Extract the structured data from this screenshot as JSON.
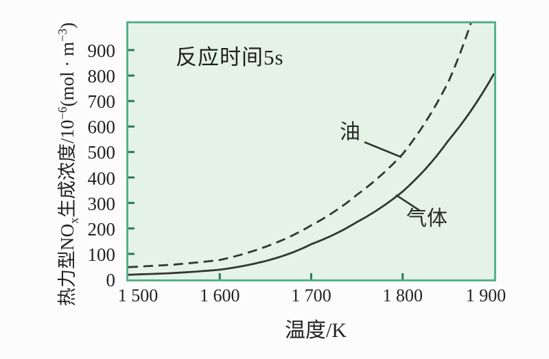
{
  "chart_data": {
    "type": "line",
    "annotation": "反应时间5s",
    "xlabel": "温度/K",
    "ylabel": "热力型NOx生成浓度/10⁻⁶(mol·m⁻³)",
    "ylabel_parts": {
      "base1": "热力型NO",
      "sub1": "x",
      "base2": "生成浓度/10",
      "sup1": "−6",
      "base3": "(mol · m",
      "sup2": "−3",
      "base4": ")"
    },
    "x_ticks": [
      "1 500",
      "1 600",
      "1 700",
      "1 800",
      "1 900"
    ],
    "y_ticks": [
      0,
      100,
      200,
      300,
      400,
      500,
      600,
      700,
      800,
      900
    ],
    "xlim": [
      1500,
      1900
    ],
    "ylim": [
      0,
      1005
    ],
    "grid": false,
    "legend_position": "inline-labels-with-leader-lines",
    "series": [
      {
        "name": "油",
        "style": "dashed",
        "x": [
          1500,
          1550,
          1600,
          1650,
          1700,
          1750,
          1800,
          1850,
          1880
        ],
        "values": [
          48,
          58,
          76,
          128,
          212,
          332,
          492,
          775,
          1065
        ]
      },
      {
        "name": "气体",
        "style": "solid",
        "x": [
          1500,
          1550,
          1600,
          1650,
          1700,
          1750,
          1800,
          1850,
          1900
        ],
        "values": [
          18,
          25,
          38,
          72,
          138,
          225,
          345,
          545,
          808
        ]
      }
    ],
    "colors": {
      "plot_background": "#e5f2e6",
      "plot_border": "#56b288",
      "tick_mark": "#2a7a58",
      "curve": "#32362f",
      "text": "#222222",
      "page_background": "#fcfcfc"
    }
  }
}
